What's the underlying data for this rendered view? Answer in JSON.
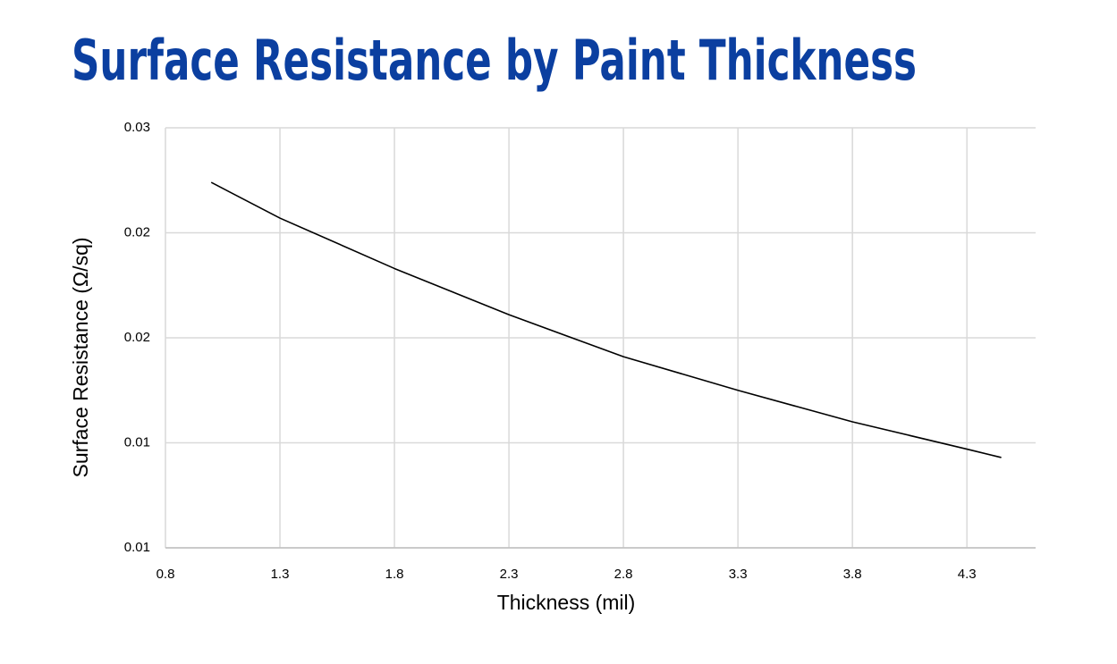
{
  "chart_data": {
    "type": "line",
    "title": "Surface Resistance by Paint Thickness",
    "x_label": "Thickness (mil)",
    "y_label": "Surface Resistance (Ω/sq)",
    "x": [
      1.0,
      1.3,
      1.8,
      2.3,
      2.8,
      3.3,
      3.8,
      4.3,
      4.45
    ],
    "series": [
      {
        "color": "#000000",
        "values": [
          0.0224,
          0.0207,
          0.0183,
          0.0161,
          0.0141,
          0.0125,
          0.011,
          0.0097,
          0.0093
        ]
      }
    ],
    "xlim": [
      0.8,
      4.6
    ],
    "xticks": [
      0.8,
      1.3,
      1.8,
      2.3,
      2.8,
      3.3,
      3.8,
      4.3
    ],
    "ylim": [
      0.005,
      0.025
    ],
    "yticks": [
      {
        "value": 0.005,
        "label": "0.01"
      },
      {
        "value": 0.01,
        "label": "0.01"
      },
      {
        "value": 0.015,
        "label": "0.02"
      },
      {
        "value": 0.02,
        "label": "0.02"
      },
      {
        "value": 0.025,
        "label": "0.03"
      }
    ],
    "grid": true
  }
}
